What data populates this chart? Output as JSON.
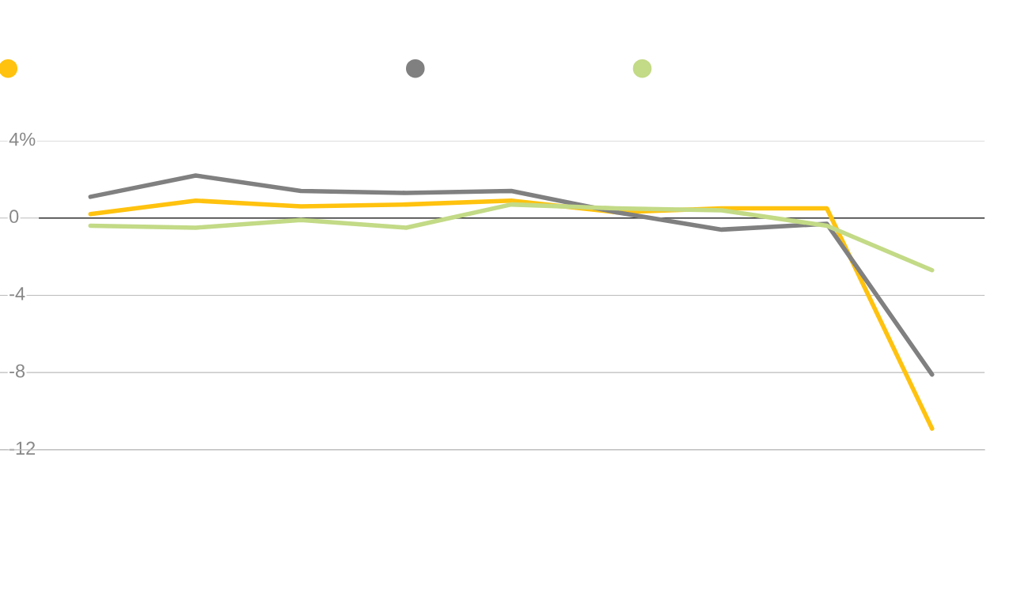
{
  "chart_data": {
    "type": "line",
    "categories": [
      null,
      null,
      null,
      null,
      null,
      null,
      null,
      null,
      null
    ],
    "series": [
      {
        "color": "#ffc20e",
        "values": [
          0.2,
          0.9,
          0.6,
          0.7,
          0.9,
          0.3,
          0.5,
          0.5,
          -10.9
        ]
      },
      {
        "color": "#808080",
        "values": [
          1.1,
          2.2,
          1.4,
          1.3,
          1.4,
          0.3,
          -0.6,
          -0.3,
          -8.1
        ]
      },
      {
        "color": "#c3da86",
        "values": [
          -0.4,
          -0.5,
          -0.1,
          -0.5,
          0.7,
          0.5,
          0.4,
          -0.4,
          -2.7
        ]
      }
    ],
    "ylim": [
      -12,
      4
    ],
    "yticks": [
      {
        "value": 4,
        "label": "4%"
      },
      {
        "value": 0,
        "label": "0"
      },
      {
        "value": -4,
        "label": "-4"
      },
      {
        "value": -8,
        "label": "-8"
      },
      {
        "value": -12,
        "label": "-12"
      }
    ],
    "ref_lines": [
      {
        "axis": "y",
        "value": 0,
        "color": "#333333"
      }
    ],
    "grid": "y",
    "marker": "none",
    "line_style": "solid"
  }
}
